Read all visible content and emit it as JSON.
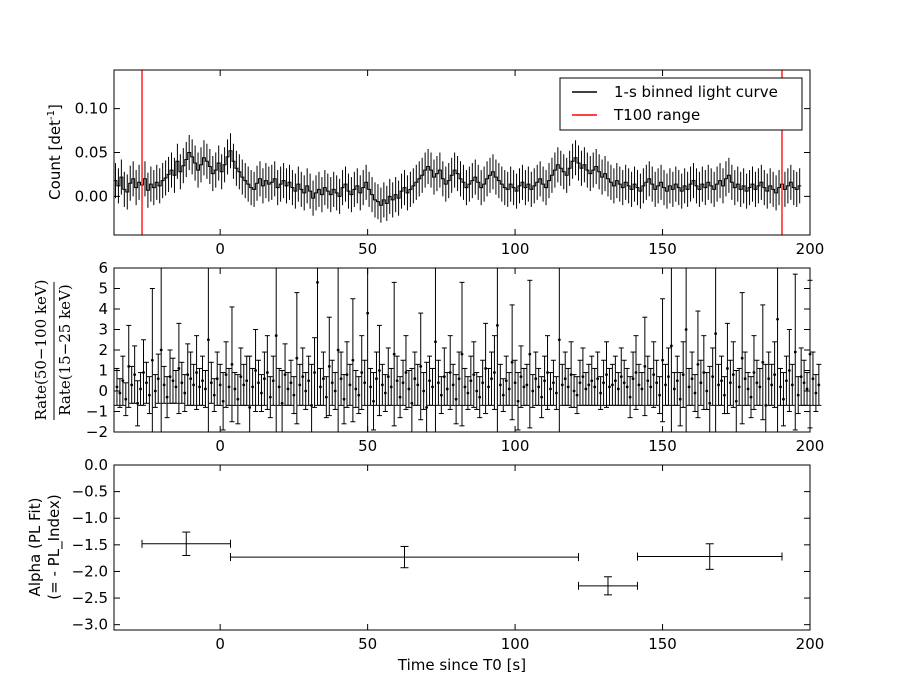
{
  "chart_data": [
    {
      "type": "line",
      "panel": "light-curve",
      "ylabel": "Count [det",
      "ylabel_sup": "-1",
      "ylabel_end": "]",
      "xlim": [
        -36,
        200
      ],
      "ylim": [
        -0.044,
        0.144
      ],
      "xticks": [
        0,
        50,
        100,
        150,
        200
      ],
      "yticks": [
        0.0,
        0.05,
        0.1
      ],
      "ytick_labels": [
        "0.00",
        "0.05",
        "0.10"
      ],
      "series": [
        {
          "name": "1-s binned light curve",
          "color": "#000000",
          "x_start": -36,
          "bin_width": 1,
          "values": [
            0.018,
            0.012,
            0.022,
            0.008,
            0.005,
            0.015,
            0.02,
            0.01,
            0.016,
            0.013,
            0.02,
            0.007,
            0.014,
            0.01,
            0.016,
            0.012,
            0.018,
            0.021,
            0.025,
            0.03,
            0.024,
            0.04,
            0.028,
            0.035,
            0.042,
            0.05,
            0.045,
            0.038,
            0.03,
            0.036,
            0.044,
            0.04,
            0.034,
            0.026,
            0.03,
            0.038,
            0.028,
            0.036,
            0.045,
            0.052,
            0.04,
            0.032,
            0.028,
            0.022,
            0.018,
            0.014,
            0.01,
            0.008,
            0.015,
            0.02,
            0.012,
            0.018,
            0.014,
            0.016,
            0.02,
            0.01,
            0.014,
            0.018,
            0.012,
            0.016,
            0.01,
            0.006,
            0.014,
            0.008,
            0.004,
            0.012,
            0.006,
            -0.002,
            0.004,
            0.008,
            0.002,
            0.01,
            0.006,
            0.002,
            0.008,
            0.004,
            0.0,
            0.01,
            0.014,
            0.006,
            0.002,
            0.008,
            0.012,
            0.004,
            0.01,
            0.016,
            0.008,
            0.002,
            -0.004,
            -0.006,
            -0.01,
            -0.004,
            -0.008,
            0.0,
            -0.004,
            0.002,
            -0.002,
            0.006,
            0.01,
            0.004,
            0.008,
            0.012,
            0.016,
            0.02,
            0.024,
            0.03,
            0.034,
            0.03,
            0.022,
            0.026,
            0.03,
            0.02,
            0.014,
            0.018,
            0.024,
            0.03,
            0.026,
            0.02,
            0.016,
            0.01,
            0.014,
            0.018,
            0.022,
            0.016,
            0.01,
            0.014,
            0.02,
            0.024,
            0.028,
            0.022,
            0.018,
            0.014,
            0.01,
            0.008,
            0.014,
            0.01,
            0.006,
            0.012,
            0.016,
            0.01,
            0.014,
            0.008,
            0.012,
            0.016,
            0.02,
            0.014,
            0.01,
            0.018,
            0.024,
            0.03,
            0.036,
            0.032,
            0.028,
            0.024,
            0.032,
            0.04,
            0.044,
            0.038,
            0.032,
            0.036,
            0.03,
            0.026,
            0.03,
            0.034,
            0.028,
            0.022,
            0.026,
            0.02,
            0.016,
            0.012,
            0.018,
            0.014,
            0.01,
            0.016,
            0.012,
            0.008,
            0.014,
            0.01,
            0.006,
            0.012,
            0.016,
            0.02,
            0.014,
            0.008,
            0.012,
            0.016,
            0.01,
            0.006,
            0.012,
            0.008,
            0.014,
            0.01,
            0.006,
            0.012,
            0.008,
            0.014,
            0.018,
            0.012,
            0.008,
            0.014,
            0.01,
            0.016,
            0.012,
            0.008,
            0.014,
            0.018,
            0.012,
            0.02,
            0.024,
            0.016,
            0.01,
            0.014,
            0.008,
            0.012,
            0.006,
            0.01,
            0.014,
            0.008,
            0.012,
            0.016,
            0.01,
            0.006,
            0.012,
            0.008,
            0.004,
            0.01,
            0.014,
            0.008,
            0.012,
            0.016,
            0.01,
            0.008,
            0.012
          ],
          "error": 0.02
        },
        {
          "name": "T100 range",
          "color": "#ff0000",
          "vlines": [
            -26.5,
            190.5
          ]
        }
      ],
      "legend": {
        "placement": "top-right"
      }
    },
    {
      "type": "scatter",
      "panel": "hardness-ratio",
      "ylabel_main": "Rate(50−100 keV)",
      "ylabel_denominator": "Rate(15−25 keV)",
      "xlim": [
        -36,
        200
      ],
      "ylim": [
        -2,
        6
      ],
      "xticks": [
        0,
        50,
        100,
        150,
        200
      ],
      "yticks": [
        -2,
        -1,
        0,
        1,
        2,
        3,
        4,
        5,
        6
      ],
      "x_start": -35,
      "step": 1,
      "values": [
        0.2,
        -0.1,
        0.5,
        -0.4,
        1.2,
        0.3,
        0.8,
        -0.6,
        0.1,
        0.9,
        0.4,
        -0.2,
        1.5,
        0.0,
        0.6,
        2.0,
        0.3,
        -0.3,
        0.7,
        0.5,
        0.2,
        1.1,
        0.4,
        -0.1,
        0.8,
        0.6,
        0.3,
        0.9,
        0.2,
        0.5,
        0.1,
        2.5,
        0.4,
        -0.2,
        0.6,
        0.3,
        -0.5,
        0.8,
        0.2,
        1.3,
        0.1,
        -0.4,
        0.7,
        0.3,
        0.5,
        -0.8,
        0.2,
        1.0,
        0.4,
        -0.1,
        0.6,
        0.9,
        -0.3,
        0.5,
        2.7,
        0.2,
        -0.6,
        0.8,
        0.1,
        0.4,
        -0.2,
        1.6,
        0.3,
        0.7,
        0.0,
        0.5,
        -0.7,
        0.9,
        5.3,
        0.2,
        0.6,
        -0.3,
        1.2,
        0.4,
        0.0,
        2.0,
        0.6,
        -0.4,
        0.8,
        0.3,
        1.5,
        0.1,
        -0.2,
        0.9,
        0.4,
        3.8,
        0.2,
        -0.5,
        0.6,
        1.0,
        0.3,
        -0.1,
        0.7,
        0.2,
        1.8,
        0.5,
        -0.3,
        0.4,
        0.9,
        0.1,
        -0.6,
        0.6,
        0.3,
        1.2,
        0.0,
        -0.8,
        0.5,
        0.2,
        2.4,
        0.4,
        -0.2,
        0.7,
        0.1,
        0.9,
        0.3,
        -0.4,
        0.6,
        1.8,
        0.2,
        -0.1,
        0.5,
        0.8,
        0.0,
        -0.3,
        0.4,
        1.1,
        0.2,
        0.6,
        0.9,
        3.2,
        0.3,
        -0.2,
        0.5,
        0.1,
        1.4,
        0.4,
        -0.5,
        0.7,
        0.2,
        0.3,
        1.8,
        0.0,
        0.6,
        0.2,
        -0.3,
        0.5,
        0.9,
        0.1,
        0.4,
        -0.1,
        2.5,
        0.3,
        0.6,
        0.2,
        0.8,
        0.0,
        -0.2,
        0.4,
        0.7,
        0.1,
        0.3,
        0.5,
        0.2,
        0.6,
        -0.1,
        0.4,
        0.8,
        0.2,
        0.3,
        0.5,
        0.1,
        0.7,
        0.4,
        0.2,
        -0.3,
        0.6,
        0.9,
        0.3,
        0.1,
        1.2,
        0.5,
        0.2,
        0.8,
        0.4,
        -0.2,
        1.5,
        0.3,
        0.7,
        2.2,
        0.1,
        0.5,
        -0.4,
        0.8,
        3.0,
        0.2,
        0.6,
        -0.1,
        1.3,
        0.4,
        0.9,
        0.0,
        -0.6,
        0.7,
        2.8,
        0.3,
        0.5,
        -0.2,
        1.1,
        0.4,
        0.8,
        -0.5,
        0.2,
        1.6,
        0.6,
        0.1,
        -0.3,
        0.9,
        0.4,
        0.2,
        1.4,
        -0.7,
        0.6,
        0.3,
        0.8,
        3.5,
        0.2,
        -0.4,
        0.5,
        1.0,
        0.3,
        1.9,
        -0.2,
        0.7,
        0.4,
        0.1,
        1.8,
        0.6,
        -0.1,
        0.3
      ],
      "errors": [
        0.9,
        0.7,
        1.2,
        0.8,
        2.0,
        0.9,
        1.4,
        1.1,
        0.8,
        1.6,
        1.0,
        0.9,
        3.5,
        0.8,
        1.2,
        4.5,
        0.9,
        1.0,
        1.3,
        1.1,
        0.8,
        2.2,
        1.0,
        0.9,
        1.5,
        1.3,
        1.0,
        1.8,
        0.9,
        1.2,
        0.9,
        6.0,
        1.0,
        0.8,
        1.3,
        1.0,
        1.4,
        1.6,
        0.9,
        2.8,
        0.8,
        1.2,
        1.4,
        1.0,
        1.2,
        2.5,
        0.9,
        2.0,
        1.1,
        0.9,
        1.3,
        1.8,
        1.0,
        1.2,
        6.0,
        0.9,
        1.6,
        1.5,
        0.8,
        1.1,
        0.9,
        3.2,
        1.0,
        1.4,
        0.9,
        1.2,
        2.0,
        1.7,
        6.0,
        0.9,
        1.3,
        1.0,
        2.4,
        1.1,
        0.9,
        4.0,
        1.3,
        1.2,
        1.6,
        1.0,
        3.0,
        0.9,
        0.9,
        1.8,
        1.1,
        6.0,
        0.9,
        1.4,
        1.3,
        2.2,
        1.0,
        0.9,
        1.4,
        0.9,
        3.5,
        1.2,
        1.0,
        1.1,
        1.8,
        0.9,
        1.7,
        1.3,
        1.0,
        2.6,
        0.9,
        2.2,
        1.2,
        0.9,
        5.0,
        1.1,
        0.9,
        1.4,
        0.8,
        1.8,
        1.0,
        1.2,
        1.3,
        3.5,
        0.9,
        0.8,
        1.2,
        1.6,
        0.9,
        1.0,
        1.1,
        2.2,
        0.9,
        1.3,
        1.8,
        6.0,
        1.0,
        0.8,
        1.2,
        0.8,
        2.8,
        1.1,
        1.4,
        1.5,
        0.9,
        1.0,
        3.6,
        0.8,
        1.3,
        0.9,
        1.0,
        1.2,
        1.8,
        0.8,
        1.1,
        0.8,
        5.0,
        1.0,
        1.3,
        0.9,
        1.6,
        0.8,
        0.9,
        1.1,
        1.4,
        0.8,
        1.0,
        1.2,
        0.9,
        1.3,
        0.8,
        1.1,
        1.6,
        0.9,
        1.0,
        1.2,
        0.8,
        1.4,
        1.1,
        0.9,
        1.0,
        1.3,
        1.8,
        1.0,
        0.8,
        2.4,
        1.2,
        0.9,
        1.6,
        1.1,
        0.9,
        3.0,
        1.0,
        1.4,
        4.5,
        0.8,
        1.2,
        1.3,
        1.6,
        6.0,
        0.9,
        1.3,
        0.9,
        2.6,
        1.1,
        1.8,
        0.9,
        1.8,
        1.4,
        6.0,
        1.0,
        1.2,
        0.9,
        2.2,
        1.1,
        1.6,
        1.5,
        0.9,
        3.2,
        1.3,
        0.8,
        1.0,
        1.8,
        1.1,
        0.9,
        2.8,
        2.0,
        1.3,
        1.0,
        1.6,
        6.0,
        0.9,
        1.3,
        1.2,
        2.0,
        1.0,
        3.8,
        0.9,
        1.4,
        1.1,
        0.8,
        3.6,
        1.3,
        0.9,
        1.0
      ]
    },
    {
      "type": "scatter",
      "panel": "spectral-index",
      "ylabel_line1": "Alpha (PL Fit)",
      "ylabel_line2": "(= - PL_Index)",
      "xlabel": "Time since T0 [s]",
      "xlim": [
        -36,
        200
      ],
      "ylim": [
        -3.1,
        0.0
      ],
      "xticks": [
        0,
        50,
        100,
        150,
        200
      ],
      "yticks": [
        0.0,
        -0.5,
        -1.0,
        -1.5,
        -2.0,
        -2.5,
        -3.0
      ],
      "ytick_labels": [
        "0.0",
        "−0.5",
        "−1.0",
        "−1.5",
        "−2.0",
        "−2.5",
        "−3.0"
      ],
      "points": [
        {
          "x": -11.5,
          "x_low": -26.5,
          "x_high": 3.5,
          "y": -1.48,
          "y_err": 0.22
        },
        {
          "x": 62.5,
          "x_low": 3.5,
          "x_high": 121.5,
          "y": -1.73,
          "y_err": 0.2
        },
        {
          "x": 131.5,
          "x_low": 121.5,
          "x_high": 141.5,
          "y": -2.27,
          "y_err": 0.17
        },
        {
          "x": 166.0,
          "x_low": 141.5,
          "x_high": 190.5,
          "y": -1.72,
          "y_err": 0.24
        }
      ]
    }
  ]
}
